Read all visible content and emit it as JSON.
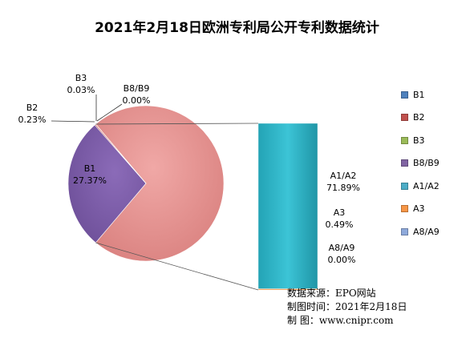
{
  "chart_data": {
    "type": "pie",
    "subtype": "bar-of-pie",
    "title": "2021年2月18日欧洲专利局公开专利数据统计",
    "slices": [
      {
        "name": "B1",
        "percent_label": "27.37%",
        "value": 27.37,
        "color": "#7a5aa6"
      },
      {
        "name": "B2",
        "percent_label": "0.23%",
        "value": 0.23,
        "color": "#c0504d"
      },
      {
        "name": "B3",
        "percent_label": "0.03%",
        "value": 0.03,
        "color": "#9bbb59"
      },
      {
        "name": "B8/B9",
        "percent_label": "0.00%",
        "value": 0.0,
        "color": "#8064a2"
      }
    ],
    "other_slice": {
      "value": 72.38,
      "color": "#e8908e"
    },
    "bar_segments": [
      {
        "name": "A1/A2",
        "percent_label": "71.89%",
        "value": 71.89,
        "color": "#2eb6c8"
      },
      {
        "name": "A3",
        "percent_label": "0.49%",
        "value": 0.49,
        "color": "#f79646"
      },
      {
        "name": "A8/A9",
        "percent_label": "0.00%",
        "value": 0.0,
        "color": "#8ea9db"
      }
    ],
    "legend": {
      "position": "right",
      "items": [
        {
          "name": "B1",
          "color": "#4f81bd"
        },
        {
          "name": "B2",
          "color": "#c0504d"
        },
        {
          "name": "B3",
          "color": "#9bbb59"
        },
        {
          "name": "B8/B9",
          "color": "#8064a2"
        },
        {
          "name": "A1/A2",
          "color": "#4bacc6"
        },
        {
          "name": "A3",
          "color": "#f79646"
        },
        {
          "name": "A8/A9",
          "color": "#8ea9db"
        }
      ]
    }
  },
  "source": {
    "line1": "数据来源：EPO网站",
    "line2": "制图时间：2021年2月18日",
    "line3": "制      图：www.cnipr.com"
  }
}
